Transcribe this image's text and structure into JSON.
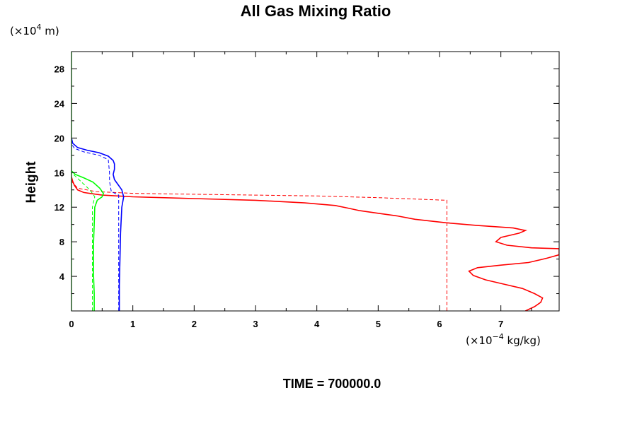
{
  "chart_data": {
    "type": "line",
    "title": "All Gas Mixing Ratio",
    "ylabel": "Height",
    "y_unit_prefix": "(×10",
    "y_unit_exp": "4",
    "y_unit_suffix": " m)",
    "x_unit_prefix": "(×10",
    "x_unit_exp": "−4",
    "x_unit_suffix": " kg/kg)",
    "footer": "TIME = 700000.0",
    "xlim": [
      0,
      7.95
    ],
    "ylim": [
      0,
      30
    ],
    "xticks": [
      0,
      1,
      2,
      3,
      4,
      5,
      6,
      7
    ],
    "yticks": [
      4,
      8,
      12,
      16,
      20,
      24,
      28
    ],
    "grid": false,
    "series": [
      {
        "color": "#ff0000",
        "style": "solid",
        "points": [
          [
            7.4,
            0.0
          ],
          [
            7.55,
            0.5
          ],
          [
            7.65,
            1.0
          ],
          [
            7.68,
            1.5
          ],
          [
            7.55,
            2.0
          ],
          [
            7.35,
            2.6
          ],
          [
            7.05,
            3.1
          ],
          [
            6.75,
            3.6
          ],
          [
            6.55,
            4.1
          ],
          [
            6.48,
            4.6
          ],
          [
            6.62,
            5.0
          ],
          [
            7.0,
            5.3
          ],
          [
            7.45,
            5.6
          ],
          [
            7.75,
            6.1
          ],
          [
            7.95,
            6.5
          ],
          [
            7.95,
            7.2
          ],
          [
            7.5,
            7.3
          ],
          [
            7.1,
            7.6
          ],
          [
            6.92,
            8.0
          ],
          [
            7.0,
            8.5
          ],
          [
            7.3,
            9.0
          ],
          [
            7.4,
            9.3
          ],
          [
            7.2,
            9.6
          ],
          [
            6.6,
            9.9
          ],
          [
            6.1,
            10.2
          ],
          [
            5.6,
            10.6
          ],
          [
            5.3,
            11.0
          ],
          [
            5.0,
            11.3
          ],
          [
            4.7,
            11.6
          ],
          [
            4.5,
            11.9
          ],
          [
            4.3,
            12.2
          ],
          [
            3.8,
            12.5
          ],
          [
            3.0,
            12.8
          ],
          [
            2.0,
            13.0
          ],
          [
            1.0,
            13.2
          ],
          [
            0.5,
            13.4
          ],
          [
            0.2,
            13.7
          ],
          [
            0.1,
            14.0
          ],
          [
            0.05,
            14.5
          ],
          [
            0.02,
            15.0
          ],
          [
            0.0,
            15.5
          ]
        ]
      },
      {
        "color": "#ff0000",
        "style": "dashed",
        "points": [
          [
            6.12,
            0.0
          ],
          [
            6.12,
            12.8
          ],
          [
            5.0,
            13.1
          ],
          [
            4.0,
            13.3
          ],
          [
            3.0,
            13.4
          ],
          [
            2.0,
            13.5
          ],
          [
            1.0,
            13.6
          ],
          [
            0.4,
            13.8
          ],
          [
            0.1,
            14.2
          ],
          [
            0.0,
            15.0
          ]
        ]
      },
      {
        "color": "#0000ff",
        "style": "solid",
        "points": [
          [
            0.78,
            0.0
          ],
          [
            0.78,
            3.0
          ],
          [
            0.79,
            6.0
          ],
          [
            0.8,
            9.0
          ],
          [
            0.82,
            12.0
          ],
          [
            0.85,
            13.2
          ],
          [
            0.82,
            14.0
          ],
          [
            0.76,
            14.6
          ],
          [
            0.7,
            15.2
          ],
          [
            0.68,
            15.8
          ],
          [
            0.7,
            16.4
          ],
          [
            0.7,
            17.0
          ],
          [
            0.68,
            17.4
          ],
          [
            0.6,
            17.9
          ],
          [
            0.45,
            18.3
          ],
          [
            0.25,
            18.6
          ],
          [
            0.1,
            18.9
          ],
          [
            0.02,
            19.4
          ],
          [
            0.0,
            20.0
          ]
        ]
      },
      {
        "color": "#0000ff",
        "style": "dashed",
        "points": [
          [
            0.77,
            0.0
          ],
          [
            0.77,
            13.4
          ],
          [
            0.65,
            13.8
          ],
          [
            0.62,
            15.0
          ],
          [
            0.62,
            16.0
          ],
          [
            0.6,
            17.5
          ],
          [
            0.45,
            18.0
          ],
          [
            0.2,
            18.4
          ],
          [
            0.05,
            18.8
          ],
          [
            0.0,
            19.3
          ]
        ]
      },
      {
        "color": "#00ff00",
        "style": "solid",
        "points": [
          [
            0.0,
            0.0
          ],
          [
            0.0,
            30.0
          ]
        ]
      },
      {
        "color": "#00ff00",
        "style": "solid",
        "points": [
          [
            0.37,
            0.0
          ],
          [
            0.37,
            2.0
          ],
          [
            0.36,
            4.0
          ],
          [
            0.36,
            6.0
          ],
          [
            0.36,
            8.0
          ],
          [
            0.37,
            10.0
          ],
          [
            0.38,
            12.0
          ],
          [
            0.42,
            12.8
          ],
          [
            0.5,
            13.2
          ],
          [
            0.52,
            13.6
          ],
          [
            0.46,
            14.2
          ],
          [
            0.35,
            14.9
          ],
          [
            0.2,
            15.4
          ],
          [
            0.06,
            15.8
          ],
          [
            0.0,
            16.2
          ]
        ]
      },
      {
        "color": "#00ff00",
        "style": "dashed",
        "points": [
          [
            0.34,
            0.0
          ],
          [
            0.34,
            12.0
          ],
          [
            0.38,
            13.2
          ],
          [
            0.3,
            14.0
          ],
          [
            0.15,
            15.0
          ],
          [
            0.0,
            16.0
          ]
        ]
      }
    ]
  }
}
